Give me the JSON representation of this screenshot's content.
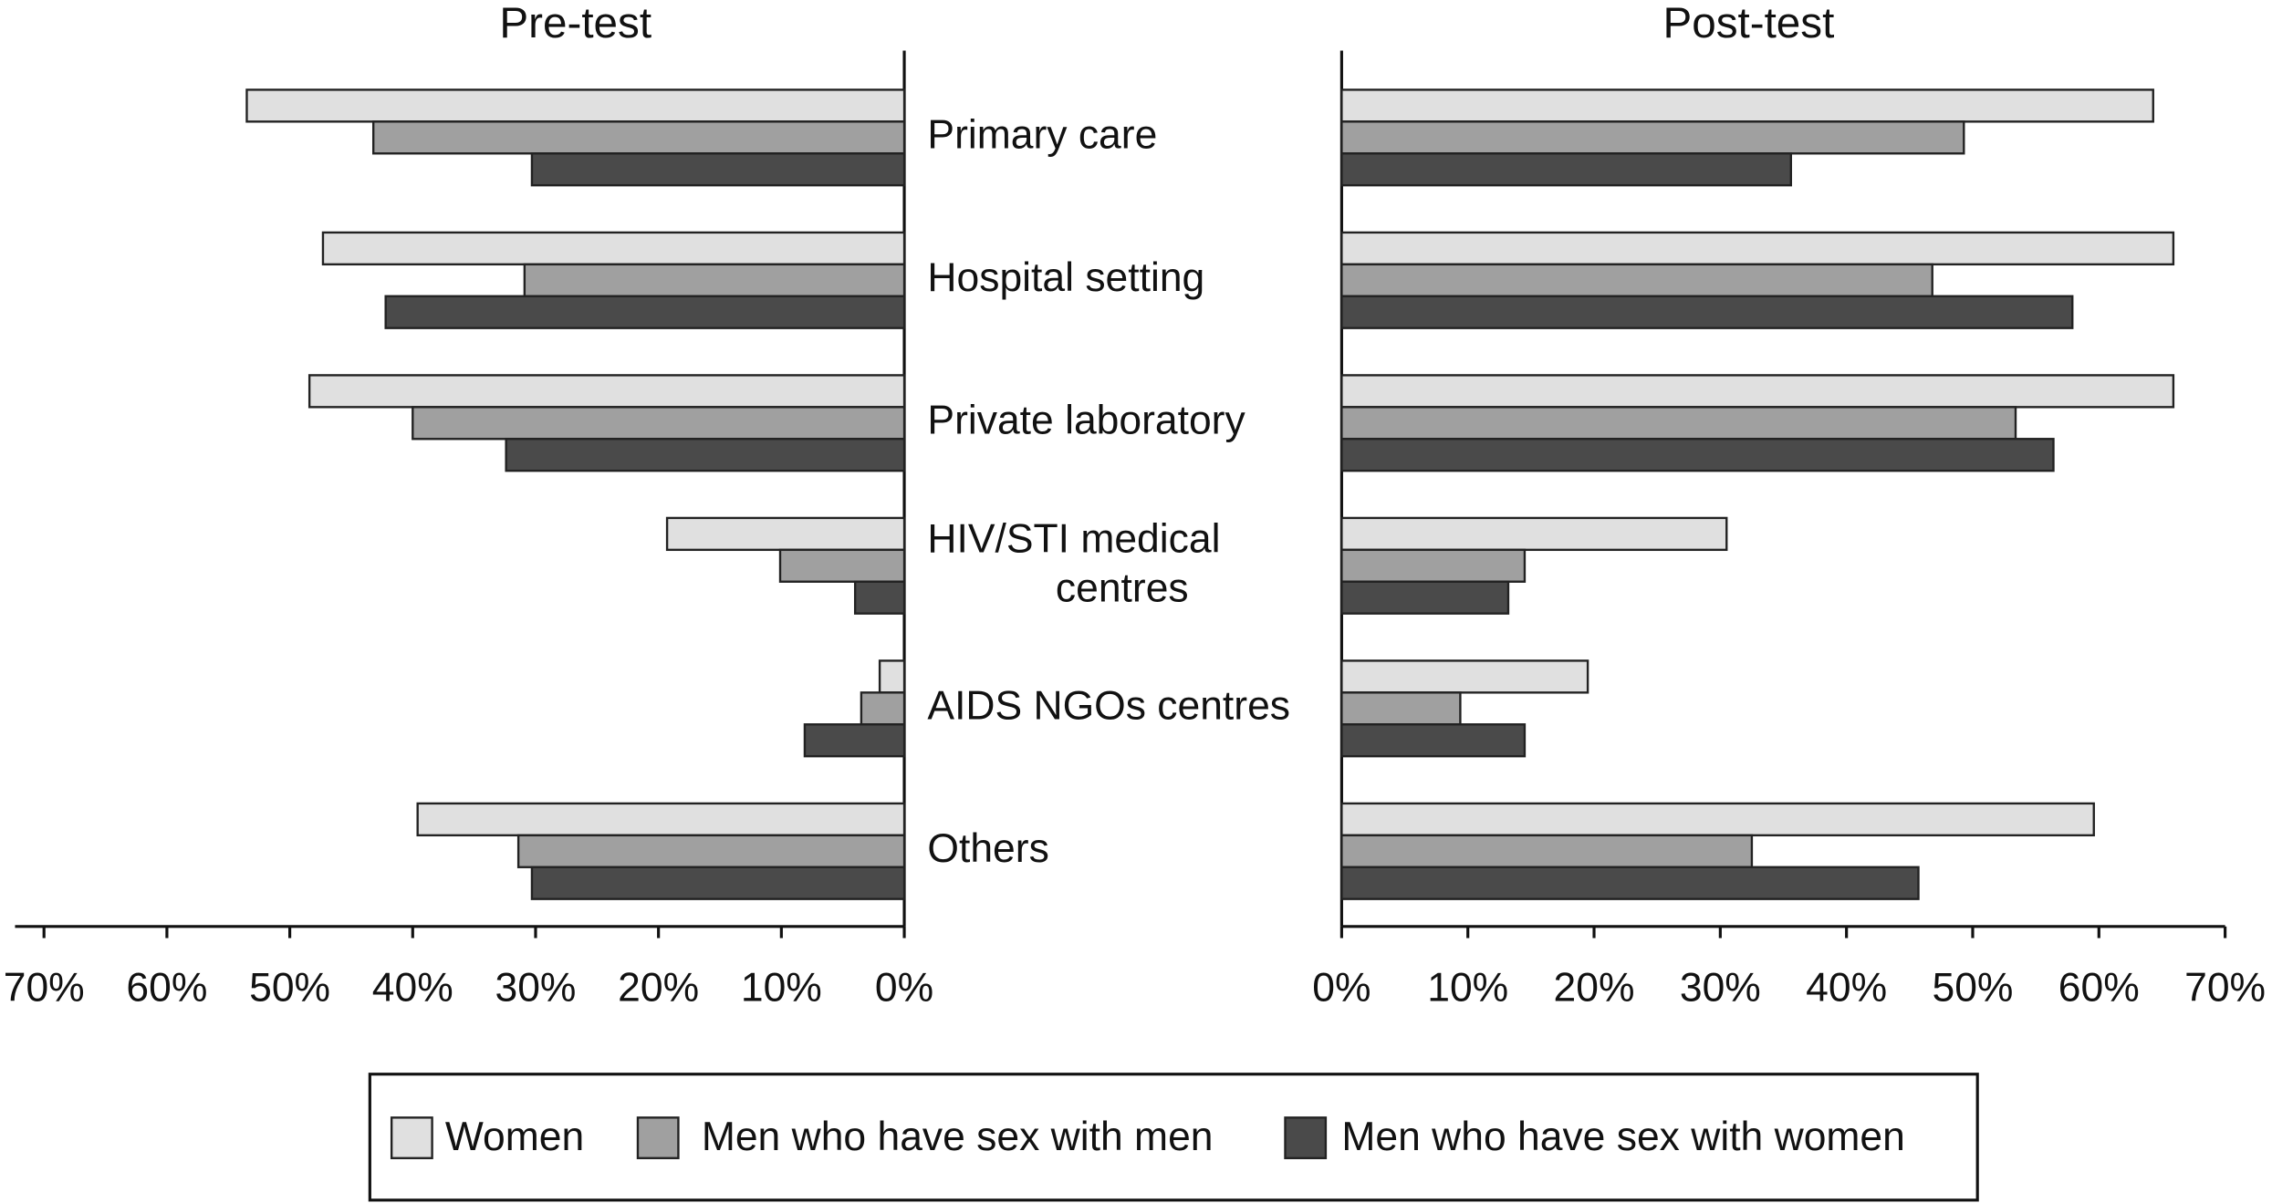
{
  "chart_data": {
    "type": "bar",
    "orientation": "horizontal",
    "categories": [
      "Primary care",
      "Hospital setting",
      "Private laboratory",
      "HIV/STI medical centres",
      "AIDS NGOs centres",
      "Others"
    ],
    "legend": [
      {
        "name": "Women",
        "color": "#e0e0e0"
      },
      {
        "name": "Men who have sex with men",
        "color": "#a0a0a0"
      },
      {
        "name": "Men who have sex with women",
        "color": "#4a4a4a"
      }
    ],
    "panels": [
      {
        "title": "Pre-test",
        "direction": "left",
        "xlim": [
          0,
          70
        ],
        "xticks": [
          {
            "value": 70,
            "label": "70%"
          },
          {
            "value": 60,
            "label": "60%"
          },
          {
            "value": 50,
            "label": "50%"
          },
          {
            "value": 40,
            "label": "40%"
          },
          {
            "value": 30,
            "label": "30%"
          },
          {
            "value": 20,
            "label": "20%"
          },
          {
            "value": 10,
            "label": "10%"
          },
          {
            "value": 0,
            "label": "0%"
          }
        ],
        "series": [
          {
            "values": [
              53.5,
              47.3,
              48.4,
              19.3,
              2.0,
              39.6
            ]
          },
          {
            "values": [
              43.2,
              30.9,
              40.0,
              10.1,
              3.5,
              31.4
            ]
          },
          {
            "values": [
              30.3,
              42.2,
              32.4,
              4.0,
              8.1,
              30.3
            ]
          }
        ]
      },
      {
        "title": "Post-test",
        "direction": "right",
        "xlim": [
          0,
          70
        ],
        "xticks": [
          {
            "value": 0,
            "label": "0%"
          },
          {
            "value": 10,
            "label": "10%"
          },
          {
            "value": 20,
            "label": "20%"
          },
          {
            "value": 30,
            "label": "30%"
          },
          {
            "value": 40,
            "label": "40%"
          },
          {
            "value": 50,
            "label": "50%"
          },
          {
            "value": 60,
            "label": "60%"
          },
          {
            "value": 70,
            "label": "70%"
          }
        ],
        "series": [
          {
            "values": [
              64.3,
              65.9,
              65.9,
              30.5,
              19.5,
              59.6
            ]
          },
          {
            "values": [
              49.3,
              46.8,
              53.4,
              14.5,
              9.4,
              32.5
            ]
          },
          {
            "values": [
              35.6,
              57.9,
              56.4,
              13.2,
              14.5,
              45.7
            ]
          }
        ]
      }
    ]
  }
}
